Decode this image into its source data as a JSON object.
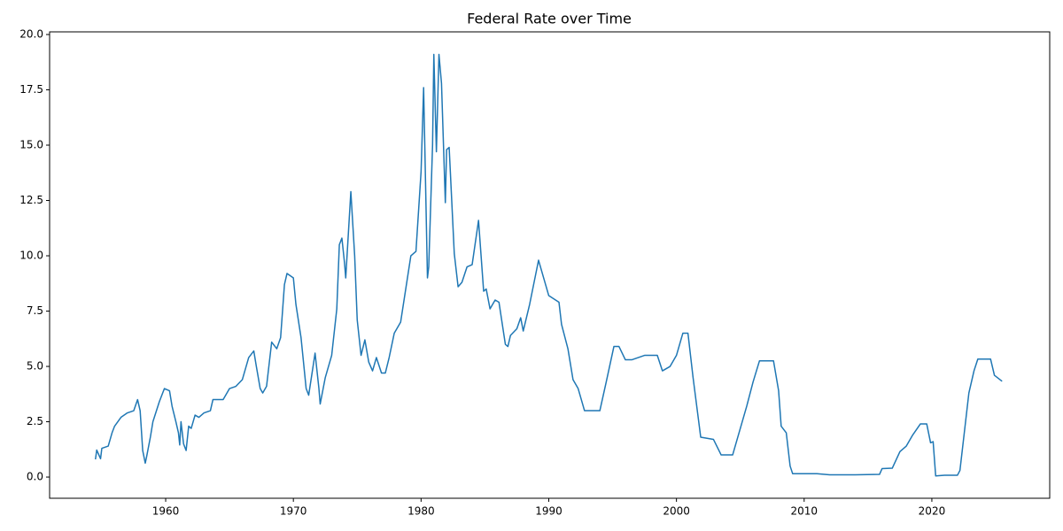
{
  "chart_data": {
    "type": "line",
    "title": "Federal Rate over Time",
    "x": [
      1954.5,
      1954.6,
      1954.9,
      1955.0,
      1955.5,
      1955.8,
      1956.0,
      1956.5,
      1957.0,
      1957.5,
      1957.8,
      1958.0,
      1958.2,
      1958.4,
      1958.5,
      1958.8,
      1959.0,
      1959.5,
      1959.9,
      1960.3,
      1960.5,
      1960.8,
      1961.0,
      1961.1,
      1961.2,
      1961.4,
      1961.6,
      1961.8,
      1962.0,
      1962.3,
      1962.6,
      1963.0,
      1963.5,
      1963.7,
      1964.5,
      1965.0,
      1965.5,
      1966.0,
      1966.5,
      1966.9,
      1967.1,
      1967.4,
      1967.6,
      1967.9,
      1968.3,
      1968.7,
      1969.0,
      1969.3,
      1969.5,
      1970.0,
      1970.2,
      1970.6,
      1971.0,
      1971.2,
      1971.7,
      1972.0,
      1972.1,
      1972.5,
      1973.0,
      1973.4,
      1973.6,
      1973.8,
      1974.0,
      1974.1,
      1974.5,
      1974.8,
      1975.0,
      1975.3,
      1975.6,
      1975.9,
      1976.2,
      1976.5,
      1976.9,
      1977.2,
      1977.5,
      1977.9,
      1978.4,
      1978.8,
      1979.2,
      1979.6,
      1980.0,
      1980.2,
      1980.5,
      1980.6,
      1980.9,
      1981.0,
      1981.2,
      1981.4,
      1981.6,
      1981.9,
      1982.0,
      1982.2,
      1982.6,
      1982.9,
      1983.2,
      1983.6,
      1984.0,
      1984.5,
      1984.9,
      1985.1,
      1985.4,
      1985.8,
      1986.1,
      1986.6,
      1986.8,
      1987.0,
      1987.5,
      1987.8,
      1988.0,
      1988.5,
      1989.2,
      1989.6,
      1990.0,
      1990.8,
      1991.0,
      1991.5,
      1991.9,
      1992.3,
      1992.8,
      1993.5,
      1994.0,
      1994.5,
      1995.1,
      1995.5,
      1996.0,
      1996.5,
      1997.5,
      1998.5,
      1998.9,
      1999.5,
      2000.0,
      2000.5,
      2000.9,
      2001.3,
      2001.9,
      2002.9,
      2003.5,
      2004.4,
      2005.0,
      2005.5,
      2006.0,
      2006.5,
      2007.6,
      2008.0,
      2008.2,
      2008.6,
      2008.9,
      2009.1,
      2010.0,
      2011.0,
      2012.0,
      2014.0,
      2015.9,
      2016.1,
      2016.9,
      2017.5,
      2018.0,
      2018.5,
      2019.1,
      2019.6,
      2019.9,
      2020.1,
      2020.3,
      2021.0,
      2022.0,
      2022.2,
      2022.6,
      2022.9,
      2023.3,
      2023.6,
      2024.6,
      2024.9,
      2025.5
    ],
    "values": [
      0.8,
      1.22,
      0.83,
      1.3,
      1.4,
      2.0,
      2.3,
      2.7,
      2.9,
      3.0,
      3.5,
      3.0,
      1.2,
      0.63,
      0.9,
      1.8,
      2.5,
      3.4,
      4.0,
      3.9,
      3.2,
      2.5,
      2.0,
      1.45,
      2.5,
      1.5,
      1.2,
      2.3,
      2.2,
      2.8,
      2.7,
      2.9,
      3.0,
      3.5,
      3.5,
      4.0,
      4.1,
      4.4,
      5.4,
      5.7,
      5.0,
      4.0,
      3.8,
      4.1,
      6.1,
      5.8,
      6.3,
      8.7,
      9.2,
      9.0,
      7.8,
      6.3,
      4.0,
      3.7,
      5.6,
      4.0,
      3.3,
      4.5,
      5.5,
      7.6,
      10.5,
      10.8,
      9.7,
      9.0,
      12.9,
      10.0,
      7.1,
      5.5,
      6.2,
      5.2,
      4.8,
      5.4,
      4.7,
      4.7,
      5.4,
      6.5,
      7.0,
      8.5,
      10.0,
      10.2,
      13.8,
      17.6,
      9.0,
      9.5,
      15.0,
      19.1,
      14.7,
      19.1,
      17.8,
      12.4,
      14.8,
      14.9,
      10.1,
      8.6,
      8.8,
      9.5,
      9.6,
      11.6,
      8.4,
      8.5,
      7.6,
      8.0,
      7.9,
      6.0,
      5.9,
      6.4,
      6.7,
      7.2,
      6.6,
      7.8,
      9.8,
      9.0,
      8.2,
      7.9,
      6.9,
      5.8,
      4.4,
      4.0,
      3.0,
      3.0,
      3.0,
      4.3,
      5.9,
      5.9,
      5.3,
      5.3,
      5.5,
      5.5,
      4.8,
      5.0,
      5.5,
      6.5,
      6.5,
      4.5,
      1.8,
      1.7,
      1.0,
      1.0,
      2.2,
      3.2,
      4.3,
      5.25,
      5.25,
      3.9,
      2.3,
      2.0,
      0.5,
      0.15,
      0.15,
      0.15,
      0.1,
      0.1,
      0.12,
      0.38,
      0.4,
      1.15,
      1.4,
      1.9,
      2.4,
      2.4,
      1.55,
      1.6,
      0.05,
      0.08,
      0.08,
      0.3,
      2.3,
      3.8,
      4.8,
      5.33,
      5.33,
      4.6,
      4.33
    ],
    "color": "#1f77b4",
    "xlim": [
      1950.91,
      2029.23
    ],
    "ylim": [
      -0.958,
      20.12
    ],
    "xticks": [
      1960,
      1970,
      1980,
      1990,
      2000,
      2010,
      2020
    ],
    "yticks": [
      {
        "value": 0,
        "label": "0.0"
      },
      2.5,
      {
        "value": 5,
        "label": "5.0"
      },
      7.5,
      {
        "value": 10,
        "label": "10.0"
      },
      12.5,
      {
        "value": 15,
        "label": "15.0"
      },
      17.5,
      {
        "value": 20,
        "label": "20.0"
      }
    ]
  }
}
